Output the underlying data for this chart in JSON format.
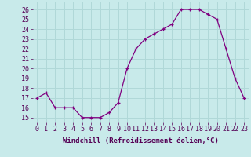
{
  "x": [
    0,
    1,
    2,
    3,
    4,
    5,
    6,
    7,
    8,
    9,
    10,
    11,
    12,
    13,
    14,
    15,
    16,
    17,
    18,
    19,
    20,
    21,
    22,
    23
  ],
  "y": [
    17,
    17.5,
    16,
    16,
    16,
    15,
    15,
    15,
    15.5,
    16.5,
    20,
    22,
    23,
    23.5,
    24,
    24.5,
    26,
    26,
    26,
    25.5,
    25,
    22,
    19,
    17
  ],
  "line_color": "#800080",
  "marker_color": "#800080",
  "bg_color": "#c8eaea",
  "grid_color": "#b0d8d8",
  "xlabel": "Windchill (Refroidissement éolien,°C)",
  "ylim": [
    14.5,
    26.8
  ],
  "xlim": [
    -0.5,
    23.5
  ],
  "yticks": [
    15,
    16,
    17,
    18,
    19,
    20,
    21,
    22,
    23,
    24,
    25,
    26
  ],
  "xticks": [
    0,
    1,
    2,
    3,
    4,
    5,
    6,
    7,
    8,
    9,
    10,
    11,
    12,
    13,
    14,
    15,
    16,
    17,
    18,
    19,
    20,
    21,
    22,
    23
  ],
  "xtick_labels": [
    "0",
    "1",
    "2",
    "3",
    "4",
    "5",
    "6",
    "7",
    "8",
    "9",
    "10",
    "11",
    "12",
    "13",
    "14",
    "15",
    "16",
    "17",
    "18",
    "19",
    "20",
    "21",
    "22",
    "23"
  ],
  "ytick_labels": [
    "15",
    "16",
    "17",
    "18",
    "19",
    "20",
    "21",
    "22",
    "23",
    "24",
    "25",
    "26"
  ],
  "label_fontsize": 6.5,
  "tick_fontsize": 6.0
}
